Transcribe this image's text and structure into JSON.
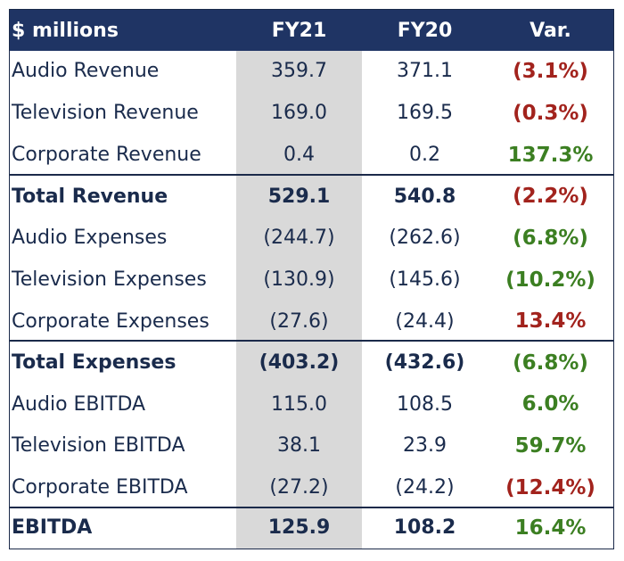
{
  "table": {
    "headers": [
      "$ millions",
      "FY21",
      "FY20",
      "Var."
    ],
    "colors": {
      "header_bg": "#1f3464",
      "fy21_shade": "#d9d9d9",
      "negative": "#a2231d",
      "positive": "#3c7f22",
      "text": "#1a2b4c"
    },
    "rows": [
      {
        "label": "Audio Revenue",
        "fy21": "359.7",
        "fy20": "371.1",
        "var": "(3.1%)",
        "var_sign": "neg",
        "bold": false
      },
      {
        "label": "Television Revenue",
        "fy21": "169.0",
        "fy20": "169.5",
        "var": "(0.3%)",
        "var_sign": "neg",
        "bold": false
      },
      {
        "label": "Corporate Revenue",
        "fy21": "0.4",
        "fy20": "0.2",
        "var": "137.3%",
        "var_sign": "pos",
        "bold": false
      },
      {
        "label": "Total Revenue",
        "fy21": "529.1",
        "fy20": "540.8",
        "var": "(2.2%)",
        "var_sign": "neg",
        "bold": true
      },
      {
        "label": "Audio Expenses",
        "fy21": "(244.7)",
        "fy20": "(262.6)",
        "var": "(6.8%)",
        "var_sign": "pos",
        "bold": false
      },
      {
        "label": "Television Expenses",
        "fy21": "(130.9)",
        "fy20": "(145.6)",
        "var": "(10.2%)",
        "var_sign": "pos",
        "bold": false
      },
      {
        "label": "Corporate Expenses",
        "fy21": "(27.6)",
        "fy20": "(24.4)",
        "var": "13.4%",
        "var_sign": "neg",
        "bold": false
      },
      {
        "label": "Total Expenses",
        "fy21": "(403.2)",
        "fy20": "(432.6)",
        "var": "(6.8%)",
        "var_sign": "pos",
        "bold": true
      },
      {
        "label": "Audio EBITDA",
        "fy21": "115.0",
        "fy20": "108.5",
        "var": "6.0%",
        "var_sign": "pos",
        "bold": false
      },
      {
        "label": "Television EBITDA",
        "fy21": "38.1",
        "fy20": "23.9",
        "var": "59.7%",
        "var_sign": "pos",
        "bold": false
      },
      {
        "label": "Corporate EBITDA",
        "fy21": "(27.2)",
        "fy20": "(24.2)",
        "var": "(12.4%)",
        "var_sign": "neg",
        "bold": false
      },
      {
        "label": "EBITDA",
        "fy21": "125.9",
        "fy20": "108.2",
        "var": "16.4%",
        "var_sign": "pos",
        "bold": true
      }
    ]
  }
}
